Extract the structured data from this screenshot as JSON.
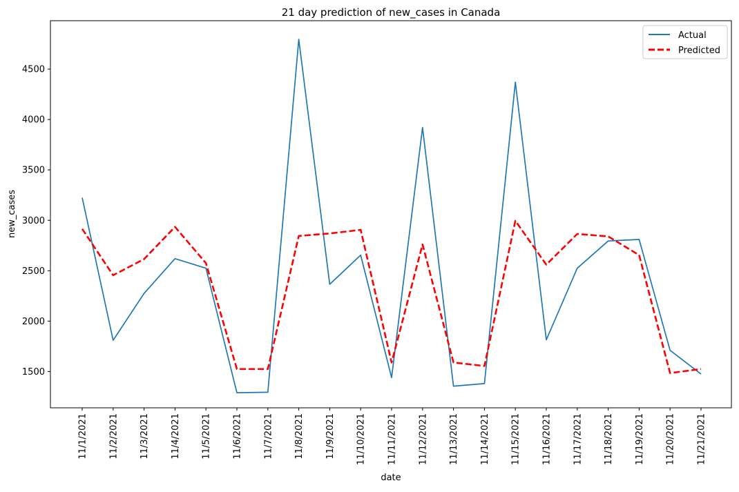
{
  "chart_data": {
    "type": "line",
    "title": "21 day prediction of new_cases in Canada",
    "xlabel": "date",
    "ylabel": "new_cases",
    "categories": [
      "11/1/2021",
      "11/2/2021",
      "11/3/2021",
      "11/4/2021",
      "11/5/2021",
      "11/6/2021",
      "11/7/2021",
      "11/8/2021",
      "11/9/2021",
      "11/10/2021",
      "11/11/2021",
      "11/12/2021",
      "11/13/2021",
      "11/14/2021",
      "11/15/2021",
      "11/16/2021",
      "11/17/2021",
      "11/18/2021",
      "11/19/2021",
      "11/20/2021",
      "11/21/2021"
    ],
    "ylim": [
      1140,
      4980
    ],
    "yticks": [
      1500,
      2000,
      2500,
      3000,
      3500,
      4000,
      4500
    ],
    "grid": false,
    "legend_position": "top-right",
    "series": [
      {
        "name": "Actual",
        "color": "#1f77b4",
        "style": "solid",
        "values": [
          3225,
          1810,
          2275,
          2620,
          2525,
          1290,
          1295,
          4795,
          2365,
          2655,
          1440,
          3920,
          1355,
          1380,
          4370,
          1815,
          2525,
          2795,
          2810,
          1710,
          1475
        ]
      },
      {
        "name": "Predicted",
        "color": "#ff0000",
        "style": "dashed",
        "values": [
          2915,
          2455,
          2615,
          2935,
          2575,
          1525,
          1525,
          2845,
          2870,
          2905,
          1590,
          2760,
          1590,
          1555,
          2995,
          2560,
          2865,
          2840,
          2655,
          1485,
          1525
        ]
      }
    ]
  }
}
